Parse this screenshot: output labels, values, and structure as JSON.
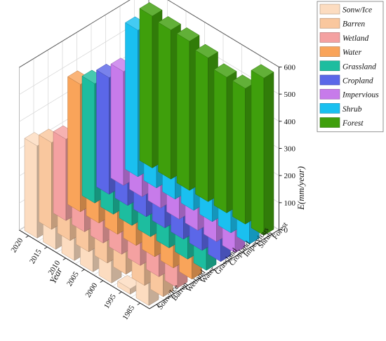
{
  "chart_data": {
    "type": "bar",
    "subtype": "3d-grouped-bar",
    "title": "",
    "x": {
      "label": "Year",
      "categories": [
        "2020",
        "2015",
        "2010",
        "2005",
        "2000",
        "1995",
        "1985"
      ]
    },
    "y": {
      "categories": [
        "Sonw/Ice",
        "Barren",
        "Wetland",
        "Water",
        "Grassland",
        "Cropland",
        "Impervious",
        "Shrub",
        "Forest"
      ]
    },
    "z": {
      "label": "E(mm/year)",
      "lim": [
        0,
        600
      ],
      "ticks": [
        "0",
        "100",
        "200",
        "300",
        "400",
        "500",
        "600"
      ]
    },
    "grid": true,
    "legend_position": "top-right",
    "series": [
      {
        "name": "Sonw/Ice",
        "color": "#FCDCC0",
        "values": [
          340,
          340,
          340,
          270,
          260,
          20,
          350
        ]
      },
      {
        "name": "Barren",
        "color": "#F9C79E",
        "values": [
          320,
          320,
          310,
          220,
          230,
          220,
          330
        ]
      },
      {
        "name": "Wetland",
        "color": "#F4A1A1",
        "values": [
          300,
          300,
          300,
          200,
          200,
          200,
          550
        ]
      },
      {
        "name": "Water",
        "color": "#F9A45A",
        "values": [
          470,
          460,
          450,
          300,
          250,
          250,
          370
        ]
      },
      {
        "name": "Grassland",
        "color": "#1DBD9F",
        "values": [
          440,
          420,
          410,
          230,
          220,
          220,
          440
        ]
      },
      {
        "name": "Cropland",
        "color": "#5B67E8",
        "values": [
          430,
          430,
          430,
          350,
          300,
          300,
          470
        ]
      },
      {
        "name": "Impervious",
        "color": "#C77BEA",
        "values": [
          420,
          400,
          400,
          330,
          330,
          330,
          440
        ]
      },
      {
        "name": "Shrub",
        "color": "#1AC0F0",
        "values": [
          540,
          520,
          520,
          470,
          400,
          470,
          560
        ]
      },
      {
        "name": "Forest",
        "color": "#3F9F0C",
        "values": [
          560,
          550,
          550,
          530,
          500,
          500,
          580
        ]
      }
    ]
  }
}
